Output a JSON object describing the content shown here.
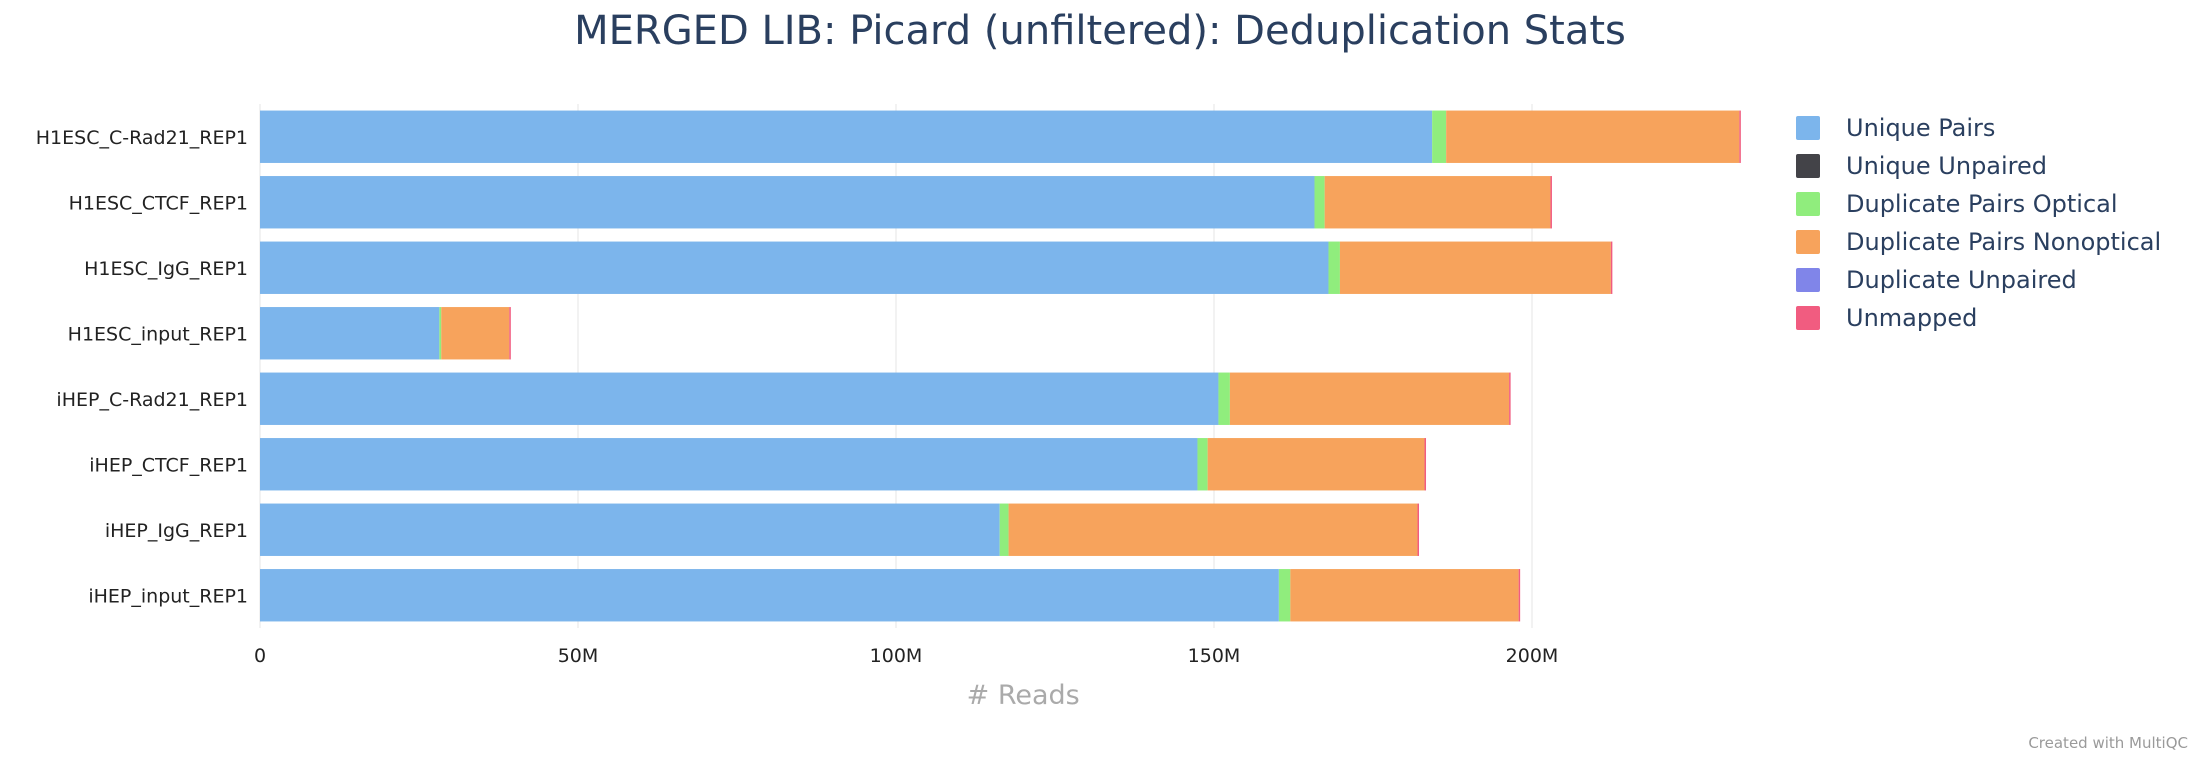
{
  "title": "MERGED LIB: Picard (unfiltered): Deduplication Stats",
  "credit": "Created with MultiQC",
  "chart_data": {
    "type": "bar",
    "orientation": "horizontal",
    "stacked": true,
    "title": "MERGED LIB: Picard (unfiltered): Deduplication Stats",
    "xlabel": "# Reads",
    "ylabel": "",
    "xlim": [
      0,
      240000000
    ],
    "x_ticks": [
      {
        "value": 0,
        "label": "0"
      },
      {
        "value": 50000000,
        "label": "50M"
      },
      {
        "value": 100000000,
        "label": "100M"
      },
      {
        "value": 150000000,
        "label": "150M"
      },
      {
        "value": 200000000,
        "label": "200M"
      }
    ],
    "grid": true,
    "legend_position": "right",
    "categories": [
      "H1ESC_C-Rad21_REP1",
      "H1ESC_CTCF_REP1",
      "H1ESC_IgG_REP1",
      "H1ESC_input_REP1",
      "iHEP_C-Rad21_REP1",
      "iHEP_CTCF_REP1",
      "iHEP_IgG_REP1",
      "iHEP_input_REP1"
    ],
    "series": [
      {
        "name": "Unique Pairs",
        "color": "#7cb5ec",
        "values": [
          184300000,
          165800000,
          168000000,
          28200000,
          150700000,
          147400000,
          116300000,
          160200000
        ]
      },
      {
        "name": "Unique Unpaired",
        "color": "#434348",
        "values": [
          0,
          0,
          0,
          0,
          0,
          0,
          0,
          0
        ]
      },
      {
        "name": "Duplicate Pairs Optical",
        "color": "#90ed7d",
        "values": [
          2200000,
          1600000,
          1800000,
          300000,
          1800000,
          1600000,
          1400000,
          1800000
        ]
      },
      {
        "name": "Duplicate Pairs Nonoptical",
        "color": "#f7a35c",
        "values": [
          46100000,
          35500000,
          42600000,
          10700000,
          43900000,
          34100000,
          64300000,
          35900000
        ]
      },
      {
        "name": "Duplicate Unpaired",
        "color": "#8085e9",
        "values": [
          0,
          0,
          0,
          0,
          0,
          0,
          0,
          0
        ]
      },
      {
        "name": "Unmapped",
        "color": "#f15c80",
        "values": [
          200000,
          200000,
          200000,
          200000,
          200000,
          200000,
          200000,
          200000
        ]
      }
    ]
  }
}
